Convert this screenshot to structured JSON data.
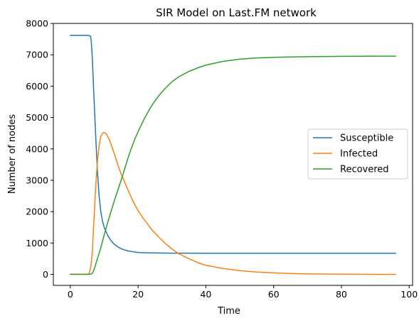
{
  "chart_data": {
    "type": "line",
    "title": "SIR Model on Last.FM network",
    "xlabel": "Time",
    "ylabel": "Number of nodes",
    "xlim": [
      -5,
      101
    ],
    "ylim": [
      -350,
      8000
    ],
    "xticks": [
      0,
      20,
      40,
      60,
      80,
      100
    ],
    "yticks": [
      0,
      1000,
      2000,
      3000,
      4000,
      5000,
      6000,
      7000,
      8000
    ],
    "grid": false,
    "legend_position": "center-right",
    "series": [
      {
        "name": "Susceptible",
        "color": "#1f77b4",
        "x": [
          0,
          1,
          2,
          3,
          4,
          5,
          5.5,
          6,
          6.2,
          6.5,
          7,
          7.5,
          8,
          8.5,
          9,
          9.5,
          10,
          11,
          12,
          13,
          14,
          15,
          16,
          17,
          18,
          19,
          20,
          22,
          24,
          26,
          28,
          30,
          35,
          40,
          50,
          60,
          70,
          80,
          90,
          96
        ],
        "y": [
          7620,
          7620,
          7620,
          7620,
          7620,
          7620,
          7615,
          7590,
          7400,
          6900,
          5600,
          4400,
          3300,
          2500,
          2000,
          1700,
          1500,
          1250,
          1080,
          960,
          880,
          820,
          780,
          750,
          730,
          715,
          700,
          690,
          685,
          682,
          680,
          678,
          676,
          675,
          675,
          675,
          675,
          675,
          675,
          675
        ]
      },
      {
        "name": "Infected",
        "color": "#ff7f0e",
        "x": [
          0,
          1,
          2,
          3,
          4,
          5,
          5.5,
          6,
          6.5,
          7,
          7.5,
          8,
          8.5,
          9,
          9.5,
          10,
          10.5,
          11,
          11.5,
          12,
          13,
          14,
          15,
          16,
          17,
          18,
          19,
          20,
          22,
          24,
          26,
          28,
          30,
          32,
          35,
          38,
          40,
          45,
          50,
          55,
          60,
          65,
          70,
          80,
          90,
          96
        ],
        "y": [
          5,
          5,
          5,
          5,
          5,
          5,
          20,
          200,
          700,
          1800,
          2800,
          3600,
          4100,
          4400,
          4500,
          4520,
          4500,
          4400,
          4300,
          4150,
          3850,
          3500,
          3200,
          2950,
          2700,
          2450,
          2230,
          2030,
          1720,
          1430,
          1200,
          990,
          810,
          660,
          500,
          360,
          290,
          190,
          120,
          75,
          50,
          30,
          15,
          5,
          2,
          1
        ]
      },
      {
        "name": "Recovered",
        "color": "#2ca02c",
        "x": [
          0,
          1,
          2,
          3,
          4,
          5,
          6,
          6.5,
          7,
          7.5,
          8,
          9,
          10,
          11,
          12,
          13,
          14,
          15,
          16,
          17,
          18,
          19,
          20,
          22,
          24,
          26,
          28,
          30,
          32,
          35,
          38,
          40,
          45,
          50,
          55,
          60,
          65,
          70,
          80,
          90,
          96
        ],
        "y": [
          0,
          0,
          0,
          0,
          0,
          0,
          5,
          40,
          150,
          320,
          500,
          850,
          1260,
          1640,
          2000,
          2350,
          2680,
          3000,
          3350,
          3700,
          4020,
          4300,
          4550,
          5000,
          5380,
          5680,
          5930,
          6140,
          6300,
          6470,
          6600,
          6670,
          6790,
          6860,
          6900,
          6920,
          6930,
          6940,
          6950,
          6955,
          6955
        ]
      }
    ]
  }
}
